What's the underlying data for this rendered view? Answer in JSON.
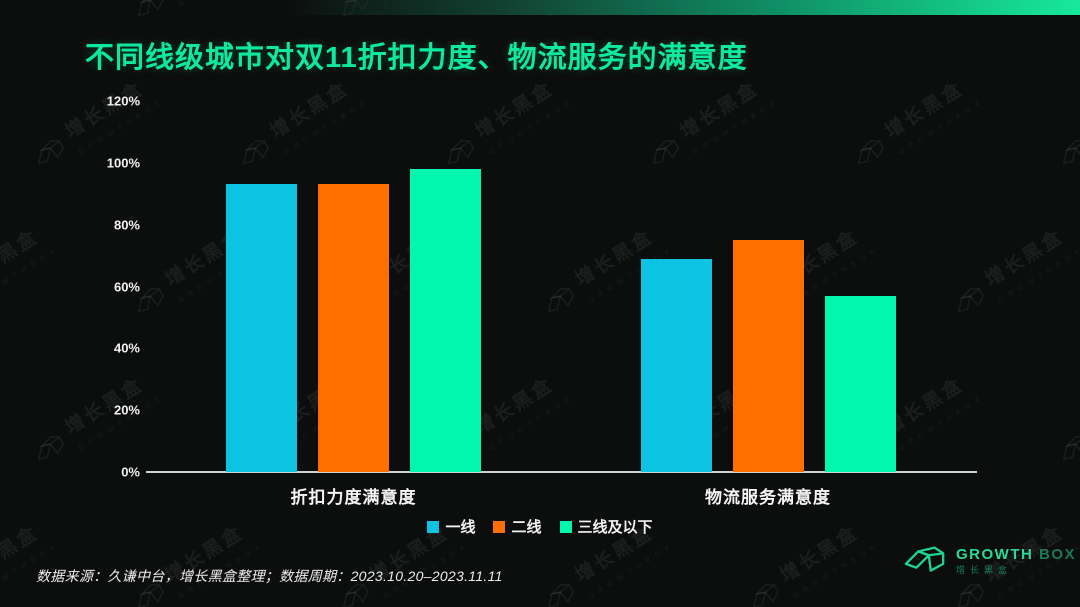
{
  "title": "不同线级城市对双11折扣力度、物流服务的满意度",
  "chart_data": {
    "type": "bar",
    "title": "不同线级城市对双11折扣力度、物流服务的满意度",
    "categories": [
      "折扣力度满意度",
      "物流服务满意度"
    ],
    "series": [
      {
        "name": "一线",
        "color": "#0cc3e2",
        "values": [
          93,
          69
        ]
      },
      {
        "name": "二线",
        "color": "#ff6e00",
        "values": [
          93,
          75
        ]
      },
      {
        "name": "三线及以下",
        "color": "#02f7ae",
        "values": [
          98,
          57
        ]
      }
    ],
    "xlabel": "",
    "ylabel": "",
    "ylim": [
      0,
      120
    ],
    "yticks": [
      0,
      20,
      40,
      60,
      80,
      100,
      120
    ],
    "ytick_suffix": "%",
    "grid": false,
    "legend_position": "bottom"
  },
  "footer": {
    "source_note": "数据来源：久谦中台，增长黑盒整理；数据周期：2023.10.20–2023.11.11"
  },
  "branding": {
    "logo_primary": "GROWTH",
    "logo_secondary": "BOX",
    "logo_subtext": "增长黑盒"
  },
  "watermark_text": "增长黑盒",
  "colors": {
    "background": "#0c0d0d",
    "title": "#0de9a0",
    "axis_text": "#f2f2f2",
    "axis_line": "#d0d0d0",
    "accent": "#17e99b"
  }
}
